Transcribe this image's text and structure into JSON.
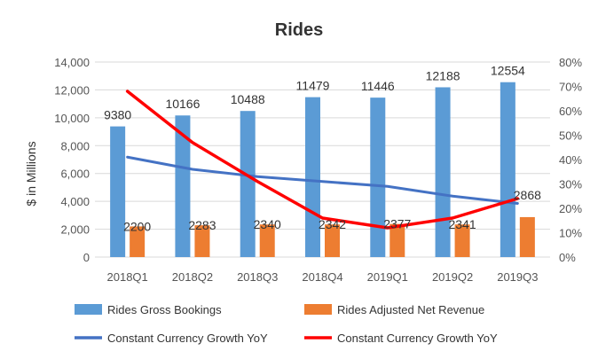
{
  "chart_data": {
    "type": "bar",
    "title": "Rides",
    "ylabel": "$ in Millions",
    "categories": [
      "2018Q1",
      "2018Q2",
      "2018Q3",
      "2018Q4",
      "2019Q1",
      "2019Q2",
      "2019Q3"
    ],
    "ylim": [
      0,
      14000
    ],
    "yticks": [
      0,
      2000,
      4000,
      6000,
      8000,
      10000,
      12000,
      14000
    ],
    "ytick_labels": [
      "0",
      "2,000",
      "4,000",
      "6,000",
      "8,000",
      "10,000",
      "12,000",
      "14,000"
    ],
    "y2lim": [
      0,
      80
    ],
    "y2ticks": [
      0,
      10,
      20,
      30,
      40,
      50,
      60,
      70,
      80
    ],
    "y2tick_labels": [
      "0%",
      "10%",
      "20%",
      "30%",
      "40%",
      "50%",
      "60%",
      "70%",
      "80%"
    ],
    "grid": true,
    "legend_placement": "bottom",
    "series": [
      {
        "name": "Rides Gross Bookings",
        "kind": "bar",
        "axis": "left",
        "color": "#5B9BD5",
        "values": [
          9380,
          10166,
          10488,
          11479,
          11446,
          12188,
          12554
        ],
        "labels": [
          "9380",
          "10166",
          "10488",
          "11479",
          "11446",
          "12188",
          "12554"
        ]
      },
      {
        "name": "Rides Adjusted Net Revenue",
        "kind": "bar",
        "axis": "left",
        "color": "#ED7D31",
        "values": [
          2200,
          2283,
          2340,
          2342,
          2377,
          2341,
          2868
        ],
        "labels": [
          "2200",
          "2283",
          "2340",
          "2342",
          "2377",
          "2341",
          "2868"
        ]
      },
      {
        "name": "Constant Currency Growth YoY",
        "kind": "line",
        "axis": "right",
        "color": "#4472C4",
        "values": [
          41,
          36,
          33,
          31,
          29,
          25,
          22
        ]
      },
      {
        "name": "Constant Currency Growth YoY",
        "kind": "line",
        "axis": "right",
        "color": "#FF0000",
        "values": [
          68,
          47,
          31,
          16,
          12,
          16,
          24
        ]
      }
    ]
  }
}
